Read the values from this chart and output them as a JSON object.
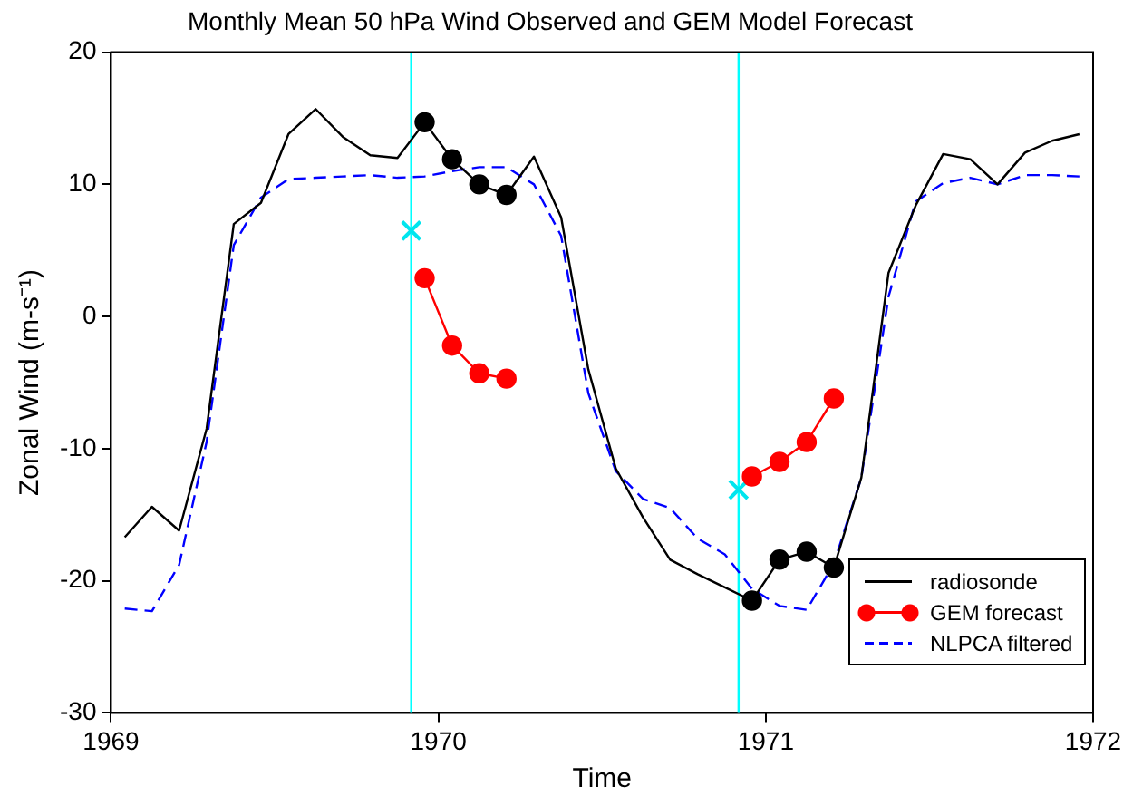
{
  "chart_data": {
    "type": "line",
    "title": "Monthly Mean 50 hPa Wind Observed and GEM Model Forecast",
    "xlabel": "Time",
    "ylabel": "Zonal Wind (m-s⁻¹)",
    "xlim": [
      1969,
      1972
    ],
    "xticks": [
      1969,
      1970,
      1971,
      1972
    ],
    "ylim": [
      -30,
      20
    ],
    "yticks": [
      -30,
      -20,
      -10,
      0,
      10,
      20
    ],
    "grid": false,
    "legend": "bottom right",
    "series": [
      {
        "name": "radiosonde",
        "color": "#000000",
        "marker": "none",
        "line_style": "solid",
        "x": [
          1969.042,
          1969.125,
          1969.208,
          1969.292,
          1969.375,
          1969.458,
          1969.542,
          1969.625,
          1969.708,
          1969.792,
          1969.875,
          1969.958,
          1970.042,
          1970.125,
          1970.208,
          1970.292,
          1970.375,
          1970.458,
          1970.542,
          1970.625,
          1970.708,
          1970.792,
          1970.875,
          1970.958,
          1971.042,
          1971.125,
          1971.208,
          1971.292,
          1971.375,
          1971.458,
          1971.542,
          1971.625,
          1971.708,
          1971.792,
          1971.875,
          1971.958
        ],
        "values": [
          -16.7,
          -14.4,
          -16.2,
          -8.5,
          7.0,
          8.6,
          13.8,
          15.7,
          13.6,
          12.2,
          12.0,
          14.7,
          11.9,
          10.0,
          9.2,
          12.1,
          7.5,
          -4.0,
          -11.5,
          -15.2,
          -18.4,
          -19.5,
          -20.5,
          -21.5,
          -18.4,
          -17.8,
          -19.0,
          -12.2,
          3.3,
          8.4,
          12.3,
          11.9,
          10.0,
          12.4,
          13.3,
          13.8
        ]
      },
      {
        "type": "scatter",
        "color": "#000000",
        "marker": "circle",
        "x": [
          1969.958,
          1970.042,
          1970.125,
          1970.208,
          1970.958,
          1971.042,
          1971.125,
          1971.208
        ],
        "values": [
          14.7,
          11.9,
          10.0,
          9.2,
          -21.5,
          -18.4,
          -17.8,
          -19.0
        ]
      },
      {
        "name": "GEM forecast",
        "color": "#ff0000",
        "marker": "circle",
        "line_style": "solid",
        "x": [
          1969.958,
          1970.042,
          1970.125,
          1970.208,
          1970.5,
          1970.958,
          1971.042,
          1971.125,
          1971.208
        ],
        "values": [
          2.9,
          -2.2,
          -4.3,
          -4.7,
          null,
          -12.1,
          -11.0,
          -9.5,
          -6.2
        ]
      },
      {
        "name": "NLPCA filtered",
        "color": "#0000ff",
        "marker": "none",
        "line_style": "dashed",
        "x": [
          1969.042,
          1969.125,
          1969.208,
          1969.292,
          1969.375,
          1969.458,
          1969.542,
          1969.625,
          1969.708,
          1969.792,
          1969.875,
          1969.958,
          1970.042,
          1970.125,
          1970.208,
          1970.292,
          1970.375,
          1970.458,
          1970.542,
          1970.625,
          1970.708,
          1970.792,
          1970.875,
          1970.958,
          1971.042,
          1971.125,
          1971.208,
          1971.292,
          1971.375,
          1971.458,
          1971.542,
          1971.625,
          1971.708,
          1971.792,
          1971.875,
          1971.958
        ],
        "values": [
          -22.1,
          -22.3,
          -18.8,
          -9.5,
          5.4,
          9.0,
          10.4,
          10.5,
          10.6,
          10.7,
          10.5,
          10.6,
          11.0,
          11.3,
          11.3,
          10.0,
          6.1,
          -5.8,
          -11.7,
          -13.8,
          -14.5,
          -16.8,
          -18.0,
          -20.6,
          -21.9,
          -22.2,
          -18.7,
          -12.2,
          1.5,
          8.7,
          10.1,
          10.5,
          10.0,
          10.7,
          10.7,
          10.6
        ]
      },
      {
        "type": "scatter",
        "color": "#00e5ee",
        "marker": "cross",
        "x": [
          1969.917,
          1970.917
        ],
        "values": [
          6.5,
          -13.1
        ]
      }
    ],
    "ref_lines": [
      {
        "axis": "x",
        "value": 1969.917,
        "color": "#00ffff"
      },
      {
        "axis": "x",
        "value": 1970.917,
        "color": "#00ffff"
      }
    ]
  }
}
